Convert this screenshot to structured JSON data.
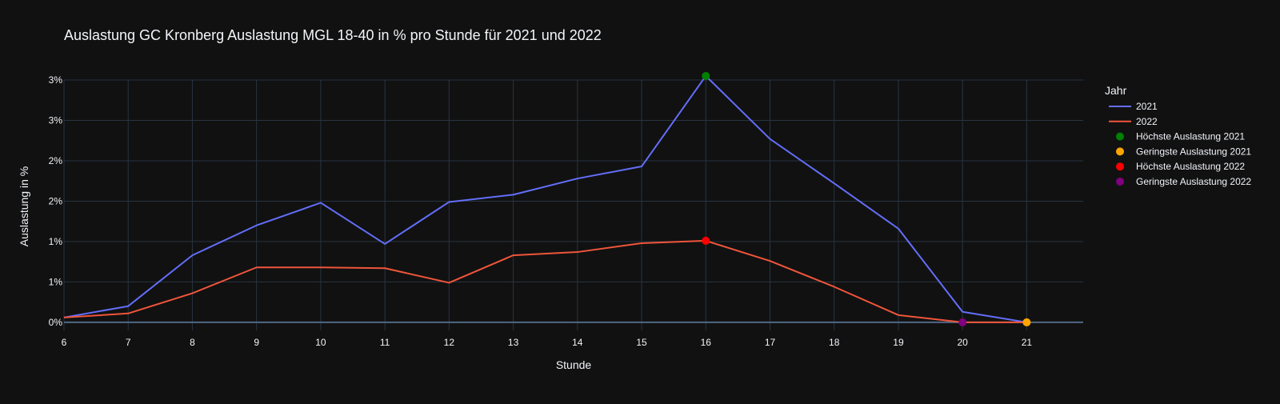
{
  "chart_data": {
    "type": "line",
    "title": "Auslastung GC Kronberg Auslastung MGL 18-40 in % pro Stunde für 2021 und 2022",
    "xlabel": "Stunde",
    "ylabel": "Auslastung in %",
    "x": [
      6,
      7,
      8,
      9,
      10,
      11,
      12,
      13,
      14,
      15,
      16,
      17,
      18,
      19,
      20,
      21
    ],
    "xlim": [
      6,
      21.88
    ],
    "ylim": [
      -0.001,
      0.03
    ],
    "x_ticks": [
      6,
      7,
      8,
      9,
      10,
      11,
      12,
      13,
      14,
      15,
      16,
      17,
      18,
      19,
      20,
      21
    ],
    "y_ticks": [
      {
        "value": 0.0,
        "label": "0%"
      },
      {
        "value": 0.005,
        "label": "1%"
      },
      {
        "value": 0.01,
        "label": "1%"
      },
      {
        "value": 0.015,
        "label": "2%"
      },
      {
        "value": 0.02,
        "label": "2%"
      },
      {
        "value": 0.025,
        "label": "3%"
      },
      {
        "value": 0.03,
        "label": "3%"
      }
    ],
    "grid": true,
    "legend_title": "Jahr",
    "legend_position": "top-right",
    "series": [
      {
        "name": "2021",
        "color": "#636efa",
        "values": [
          0.0006,
          0.002,
          0.0083,
          0.012,
          0.0148,
          0.0097,
          0.0149,
          0.0158,
          0.0178,
          0.0193,
          0.0305,
          0.0227,
          0.0172,
          0.0116,
          0.0013,
          0.0
        ]
      },
      {
        "name": "2022",
        "color": "#ef553b",
        "values": [
          0.0006,
          0.0011,
          0.0036,
          0.0068,
          0.0068,
          0.0067,
          0.0049,
          0.0083,
          0.0087,
          0.0098,
          0.0101,
          0.0076,
          0.0044,
          0.0009,
          0.0,
          0.0
        ]
      }
    ],
    "markers": [
      {
        "name": "Höchste Auslastung 2021",
        "color": "#008000",
        "x": 16,
        "y": 0.0305
      },
      {
        "name": "Geringste Auslastung 2021",
        "color": "#ffa500",
        "x": 21,
        "y": 0.0
      },
      {
        "name": "Höchste Auslastung 2022",
        "color": "#ff0000",
        "x": 16,
        "y": 0.0101
      },
      {
        "name": "Geringste Auslastung 2022",
        "color": "#800080",
        "x": 20,
        "y": 0.0
      }
    ]
  }
}
